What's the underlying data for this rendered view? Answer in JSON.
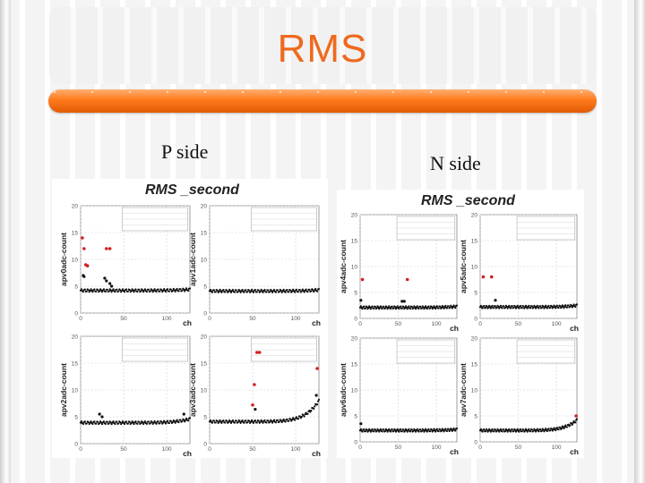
{
  "slide": {
    "title": "RMS",
    "left_label": "P side",
    "right_label": "N side",
    "accent_color": "#ee6a1e"
  },
  "panels": [
    {
      "key": "p",
      "title": "RMS _second"
    },
    {
      "key": "n",
      "title": "RMS _second"
    }
  ],
  "chart_data": [
    {
      "type": "scatter",
      "panel": "p",
      "ylabel": "apv0adc-count",
      "xlabel": "ch",
      "xlim": [
        0,
        127
      ],
      "ylim": [
        0,
        20
      ],
      "xticks": [
        0,
        50,
        100
      ],
      "yticks": [
        0,
        5,
        10,
        15,
        20
      ],
      "grid": true,
      "baseline": 4.2,
      "end_rise": 4.4,
      "red_points": [
        [
          2,
          14
        ],
        [
          4,
          12
        ],
        [
          6,
          9
        ],
        [
          8,
          8.8
        ],
        [
          30,
          12
        ],
        [
          34,
          12
        ]
      ],
      "black_points": [
        [
          3,
          7
        ],
        [
          4,
          6.8
        ],
        [
          28,
          6.5
        ],
        [
          30,
          6
        ],
        [
          34,
          5.5
        ],
        [
          36,
          5
        ]
      ]
    },
    {
      "type": "scatter",
      "panel": "p",
      "ylabel": "apv1adc-count",
      "xlabel": "ch",
      "xlim": [
        0,
        127
      ],
      "ylim": [
        0,
        20
      ],
      "xticks": [
        0,
        50,
        100
      ],
      "yticks": [
        0,
        5,
        10,
        15,
        20
      ],
      "grid": true,
      "baseline": 4.1,
      "end_rise": 4.3,
      "red_points": [],
      "black_points": []
    },
    {
      "type": "scatter",
      "panel": "p",
      "ylabel": "apv2adc-count",
      "xlabel": "ch",
      "xlim": [
        0,
        127
      ],
      "ylim": [
        0,
        20
      ],
      "xticks": [
        0,
        50,
        100
      ],
      "yticks": [
        0,
        5,
        10,
        15,
        20
      ],
      "grid": true,
      "baseline": 3.9,
      "end_rise": 4.6,
      "red_points": [],
      "black_points": [
        [
          22,
          5.5
        ],
        [
          25,
          5
        ],
        [
          120,
          5.5
        ]
      ]
    },
    {
      "type": "scatter",
      "panel": "p",
      "ylabel": "apv3adc-count",
      "xlabel": "ch",
      "xlim": [
        0,
        127
      ],
      "ylim": [
        0,
        20
      ],
      "xticks": [
        0,
        50,
        100
      ],
      "yticks": [
        0,
        5,
        10,
        15,
        20
      ],
      "grid": true,
      "baseline": 4.1,
      "end_rise": 8.0,
      "red_points": [
        [
          55,
          17
        ],
        [
          58,
          17
        ],
        [
          52,
          11
        ],
        [
          50,
          7.2
        ],
        [
          125,
          14
        ]
      ],
      "black_points": [
        [
          53,
          6.4
        ],
        [
          124,
          9
        ]
      ]
    },
    {
      "type": "scatter",
      "panel": "n",
      "ylabel": "apv4adc-count",
      "xlabel": "ch",
      "xlim": [
        0,
        127
      ],
      "ylim": [
        0,
        20
      ],
      "xticks": [
        0,
        50,
        100
      ],
      "yticks": [
        0,
        5,
        10,
        15,
        20
      ],
      "grid": true,
      "baseline": 2.1,
      "end_rise": 2.3,
      "red_points": [
        [
          3,
          7.5
        ],
        [
          62,
          7.5
        ]
      ],
      "black_points": [
        [
          1,
          3.5
        ],
        [
          55,
          3.3
        ],
        [
          58,
          3.3
        ]
      ]
    },
    {
      "type": "scatter",
      "panel": "n",
      "ylabel": "apv5adc-count",
      "xlabel": "ch",
      "xlim": [
        0,
        127
      ],
      "ylim": [
        0,
        20
      ],
      "xticks": [
        0,
        50,
        100
      ],
      "yticks": [
        0,
        5,
        10,
        15,
        20
      ],
      "grid": true,
      "baseline": 2.2,
      "end_rise": 2.5,
      "red_points": [
        [
          4,
          8
        ],
        [
          15,
          8
        ]
      ],
      "black_points": [
        [
          20,
          3.5
        ]
      ]
    },
    {
      "type": "scatter",
      "panel": "n",
      "ylabel": "apv6adc-count",
      "xlabel": "ch",
      "xlim": [
        0,
        127
      ],
      "ylim": [
        0,
        20
      ],
      "xticks": [
        0,
        50,
        100
      ],
      "yticks": [
        0,
        5,
        10,
        15,
        20
      ],
      "grid": true,
      "baseline": 2.2,
      "end_rise": 2.4,
      "red_points": [],
      "black_points": [
        [
          1,
          3.5
        ]
      ]
    },
    {
      "type": "scatter",
      "panel": "n",
      "ylabel": "apv7adc-count",
      "xlabel": "ch",
      "xlim": [
        0,
        127
      ],
      "ylim": [
        0,
        20
      ],
      "xticks": [
        0,
        50,
        100
      ],
      "yticks": [
        0,
        5,
        10,
        15,
        20
      ],
      "grid": true,
      "baseline": 2.2,
      "end_rise": 4.2,
      "red_points": [
        [
          126,
          5
        ]
      ],
      "black_points": []
    }
  ]
}
